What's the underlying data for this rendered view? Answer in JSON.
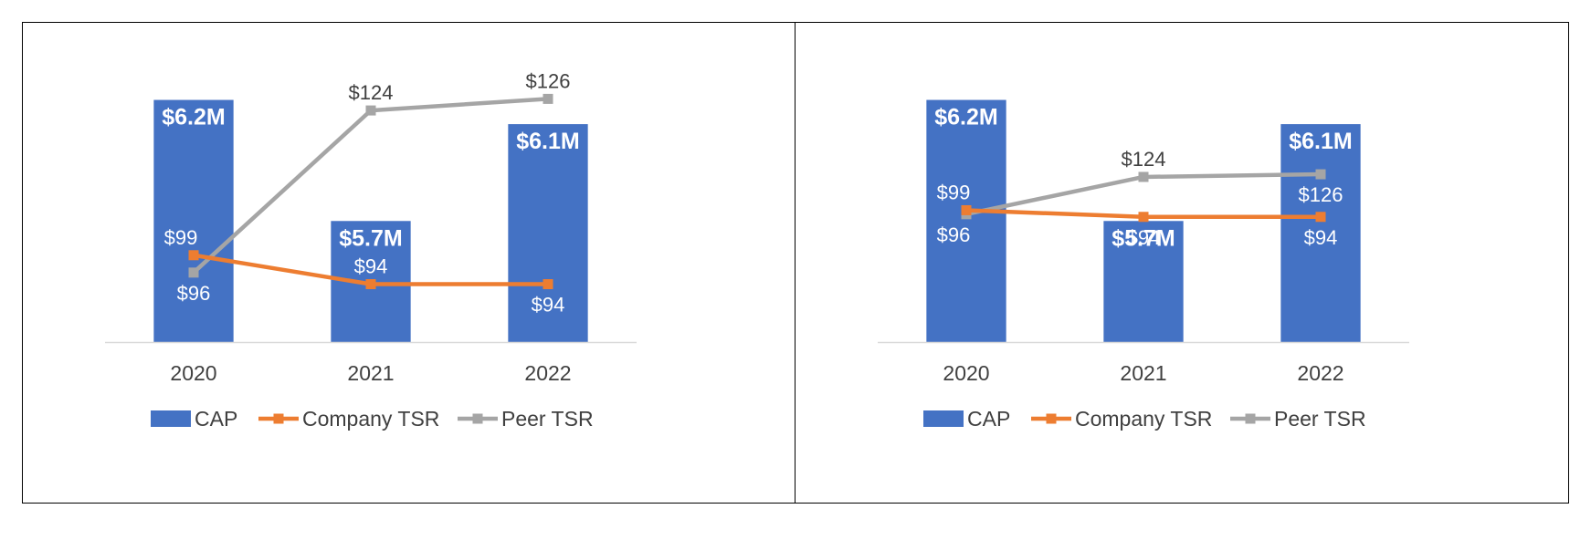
{
  "colors": {
    "cap": "#4472C4",
    "company_tsr": "#ED7D31",
    "peer_tsr": "#A5A5A5",
    "axis": "#D9D9D9",
    "label_dark": "#404040",
    "label_light": "#ffffff"
  },
  "chart_data": [
    {
      "type": "bar",
      "categories": [
        "2020",
        "2021",
        "2022"
      ],
      "bars": {
        "name": "CAP",
        "values": [
          6.2,
          5.7,
          6.1
        ],
        "labels": [
          "$6.2M",
          "$5.7M",
          "$6.1M"
        ],
        "ylim": [
          5.2,
          6.3
        ]
      },
      "lines": [
        {
          "name": "Company TSR",
          "values": [
            99,
            94,
            94
          ],
          "labels": [
            "$99",
            "$94",
            "$94"
          ]
        },
        {
          "name": "Peer TSR",
          "values": [
            96,
            124,
            126
          ],
          "labels": [
            "$96",
            "$124",
            "$126"
          ]
        }
      ],
      "line_ylim": [
        84,
        130
      ],
      "legend": [
        "CAP",
        "Company TSR",
        "Peer TSR"
      ],
      "legend_position": "bottom",
      "grid": false
    },
    {
      "type": "bar",
      "categories": [
        "2020",
        "2021",
        "2022"
      ],
      "bars": {
        "name": "CAP",
        "values": [
          6.2,
          5.7,
          6.1
        ],
        "labels": [
          "$6.2M",
          "$5.7M",
          "$6.1M"
        ],
        "ylim": [
          5.2,
          6.3
        ]
      },
      "lines": [
        {
          "name": "Company TSR",
          "values": [
            99,
            94,
            94
          ],
          "labels": [
            "$99",
            "$94",
            "$94"
          ]
        },
        {
          "name": "Peer TSR",
          "values": [
            96,
            124,
            126
          ],
          "labels": [
            "$96",
            "$124",
            "$126"
          ]
        }
      ],
      "line_ylim": [
        0,
        200
      ],
      "legend": [
        "CAP",
        "Company TSR",
        "Peer TSR"
      ],
      "legend_position": "bottom",
      "grid": false
    }
  ]
}
